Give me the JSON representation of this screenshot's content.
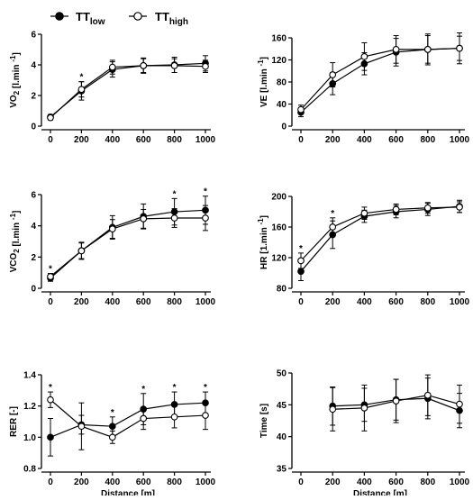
{
  "legend": {
    "items": [
      {
        "base": "TT",
        "sub": "low",
        "marker": "filled"
      },
      {
        "base": "TT",
        "sub": "high",
        "marker": "open"
      }
    ]
  },
  "chart_data": [
    {
      "type": "line",
      "ylabel": "VO2 [l.min -1]",
      "ylabel_parts": {
        "main": "VO",
        "sub": "2",
        "unit": " [l.min ",
        "sup": "-1",
        "close": "]"
      },
      "xlabel": "",
      "ylim": [
        0,
        6
      ],
      "yticks": [
        0,
        2,
        4,
        6
      ],
      "x": [
        0,
        200,
        400,
        600,
        800,
        1000
      ],
      "series": [
        {
          "name": "TTlow",
          "values": [
            0.6,
            2.3,
            3.7,
            3.95,
            4.0,
            4.1
          ],
          "err": [
            0.15,
            0.6,
            0.5,
            0.5,
            0.5,
            0.5
          ]
        },
        {
          "name": "TThigh",
          "values": [
            0.55,
            2.4,
            3.85,
            3.95,
            3.95,
            3.9
          ],
          "err": [
            0.15,
            0.5,
            0.45,
            0.45,
            0.45,
            0.4
          ]
        }
      ],
      "significant": [
        false,
        true,
        false,
        false,
        false,
        false
      ]
    },
    {
      "type": "line",
      "ylabel": "VE [l.min -1]",
      "ylabel_parts": {
        "main": "VE",
        "sub": "",
        "unit": " [l.min ",
        "sup": "-1",
        "close": "]"
      },
      "xlabel": "",
      "ylim": [
        0,
        160
      ],
      "yticks": [
        0,
        40,
        80,
        120,
        160
      ],
      "x": [
        0,
        200,
        400,
        600,
        800,
        1000
      ],
      "series": [
        {
          "name": "TTlow",
          "values": [
            25,
            77,
            113,
            134,
            139,
            141
          ],
          "err": [
            8,
            20,
            20,
            25,
            25,
            22
          ]
        },
        {
          "name": "TThigh",
          "values": [
            30,
            93,
            126,
            139,
            139,
            141
          ],
          "err": [
            8,
            22,
            25,
            25,
            28,
            28
          ]
        }
      ],
      "significant": [
        false,
        false,
        false,
        false,
        false,
        false
      ]
    },
    {
      "type": "line",
      "ylabel": "VCO2 [l.min -1]",
      "ylabel_parts": {
        "main": "VCO",
        "sub": "2",
        "unit": " [l.min ",
        "sup": "-1",
        "close": "]"
      },
      "xlabel": "",
      "ylim": [
        0,
        6
      ],
      "yticks": [
        0,
        2,
        4,
        6
      ],
      "x": [
        0,
        200,
        400,
        600,
        800,
        1000
      ],
      "series": [
        {
          "name": "TTlow",
          "values": [
            0.65,
            2.4,
            3.9,
            4.6,
            4.9,
            5.0
          ],
          "err": [
            0.2,
            0.55,
            0.75,
            0.8,
            0.85,
            0.9
          ]
        },
        {
          "name": "TThigh",
          "values": [
            0.75,
            2.4,
            3.8,
            4.45,
            4.5,
            4.5
          ],
          "err": [
            0.2,
            0.5,
            0.6,
            0.6,
            0.6,
            0.8
          ]
        }
      ],
      "significant": [
        true,
        false,
        false,
        false,
        true,
        true
      ]
    },
    {
      "type": "line",
      "ylabel": "HR [1.min -1]",
      "ylabel_parts": {
        "main": "HR",
        "sub": "",
        "unit": " [1.min ",
        "sup": "-1",
        "close": "]"
      },
      "xlabel": "",
      "ylim": [
        80,
        200
      ],
      "yticks": [
        80,
        120,
        160,
        200
      ],
      "x": [
        0,
        200,
        400,
        600,
        800,
        1000
      ],
      "series": [
        {
          "name": "TTlow",
          "values": [
            102,
            150,
            174,
            180,
            183,
            187
          ],
          "err": [
            12,
            18,
            8,
            8,
            8,
            8
          ]
        },
        {
          "name": "TThigh",
          "values": [
            116,
            160,
            178,
            183,
            185,
            186
          ],
          "err": [
            10,
            12,
            8,
            7,
            7,
            7
          ]
        }
      ],
      "significant": [
        true,
        true,
        false,
        false,
        false,
        false
      ]
    },
    {
      "type": "line",
      "ylabel": "RER [-]",
      "ylabel_parts": {
        "main": "RER [-]",
        "sub": "",
        "unit": "",
        "sup": "",
        "close": ""
      },
      "xlabel": "Distance [m]",
      "ylim": [
        0.8,
        1.4
      ],
      "yticks": [
        0.8,
        1.0,
        1.2,
        1.4
      ],
      "ytick_labels": [
        "0.8",
        "1.0",
        "1.2",
        "1.4"
      ],
      "x": [
        0,
        200,
        400,
        600,
        800,
        1000
      ],
      "series": [
        {
          "name": "TTlow",
          "values": [
            1.0,
            1.08,
            1.07,
            1.18,
            1.21,
            1.22
          ],
          "err": [
            0.12,
            0.06,
            0.06,
            0.1,
            0.08,
            0.07
          ]
        },
        {
          "name": "TThigh",
          "values": [
            1.24,
            1.07,
            1.0,
            1.12,
            1.13,
            1.14
          ],
          "err": [
            0.05,
            0.15,
            0.04,
            0.07,
            0.07,
            0.09
          ]
        }
      ],
      "significant": [
        true,
        false,
        true,
        true,
        true,
        true
      ]
    },
    {
      "type": "line",
      "ylabel": "Time [s]",
      "ylabel_parts": {
        "main": "Time [s]",
        "sub": "",
        "unit": "",
        "sup": "",
        "close": ""
      },
      "xlabel": "Distance [m]",
      "ylim": [
        35,
        50
      ],
      "yticks": [
        35,
        40,
        45,
        50
      ],
      "x": [
        0,
        200,
        400,
        600,
        800,
        1000
      ],
      "series": [
        {
          "name": "TTlow",
          "values": [
            null,
            44.8,
            45.0,
            45.8,
            46.0,
            44.1
          ],
          "err": [
            0,
            3.0,
            2.6,
            3.2,
            3.2,
            2.7
          ]
        },
        {
          "name": "TThigh",
          "values": [
            null,
            44.3,
            44.5,
            45.6,
            46.5,
            45.1
          ],
          "err": [
            0,
            3.4,
            3.6,
            3.4,
            3.2,
            3.0
          ]
        }
      ],
      "significant": [
        false,
        false,
        false,
        false,
        false,
        false
      ]
    }
  ]
}
